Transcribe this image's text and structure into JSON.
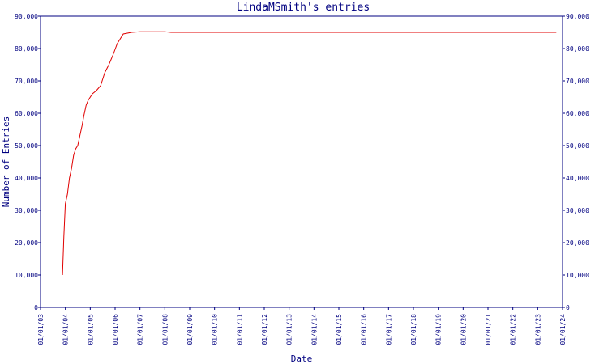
{
  "chart_data": {
    "type": "line",
    "title": "LindaMSmith's entries",
    "xlabel": "Date",
    "ylabel": "Number of Entries",
    "x_ticks": [
      "01/01/03",
      "01/01/04",
      "01/01/05",
      "01/01/06",
      "01/01/07",
      "01/01/08",
      "01/01/09",
      "01/01/10",
      "01/01/11",
      "01/01/12",
      "01/01/13",
      "01/01/14",
      "01/01/15",
      "01/01/16",
      "01/01/17",
      "01/01/18",
      "01/01/19",
      "01/01/20",
      "01/01/21",
      "01/01/22",
      "01/01/23",
      "01/01/24"
    ],
    "y_ticks": [
      "0",
      "10,000",
      "20,000",
      "30,000",
      "40,000",
      "50,000",
      "60,000",
      "70,000",
      "80,000",
      "90,000"
    ],
    "xlim": [
      "2003-01-01",
      "2024-01-01"
    ],
    "ylim": [
      0,
      90000
    ],
    "grid": false,
    "series": [
      {
        "color": "#e00000",
        "points": [
          [
            "2003-11-20",
            10000
          ],
          [
            "2003-12-10",
            22000
          ],
          [
            "2004-01-01",
            32000
          ],
          [
            "2004-02-01",
            35000
          ],
          [
            "2004-03-01",
            40000
          ],
          [
            "2004-04-01",
            43000
          ],
          [
            "2004-05-01",
            47000
          ],
          [
            "2004-06-01",
            49000
          ],
          [
            "2004-07-01",
            50000
          ],
          [
            "2004-08-01",
            53000
          ],
          [
            "2004-09-01",
            56000
          ],
          [
            "2004-10-01",
            59500
          ],
          [
            "2004-11-01",
            62500
          ],
          [
            "2004-12-01",
            64000
          ],
          [
            "2005-02-01",
            66000
          ],
          [
            "2005-04-01",
            67000
          ],
          [
            "2005-06-01",
            68500
          ],
          [
            "2005-08-01",
            72500
          ],
          [
            "2005-10-01",
            75000
          ],
          [
            "2005-12-01",
            78000
          ],
          [
            "2006-02-01",
            81500
          ],
          [
            "2006-05-01",
            84500
          ],
          [
            "2006-09-01",
            85000
          ],
          [
            "2007-01-01",
            85200
          ],
          [
            "2008-01-01",
            85200
          ],
          [
            "2008-04-01",
            85000
          ],
          [
            "2023-10-01",
            85000
          ]
        ]
      }
    ]
  }
}
